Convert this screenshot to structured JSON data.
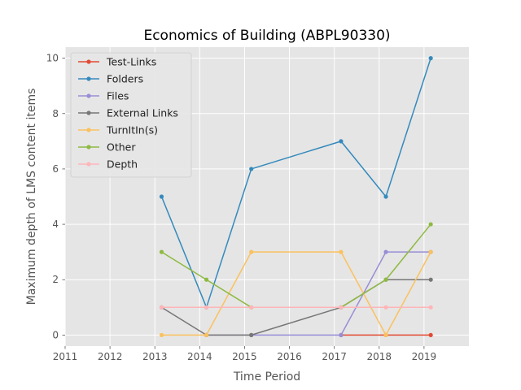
{
  "chart_data": {
    "type": "line",
    "title": "Economics of Building (ABPL90330)",
    "xlabel": "Time Period",
    "ylabel": "Maximum depth of LMS content items",
    "xlim": [
      2011,
      2020
    ],
    "ylim": [
      -0.4,
      10.4
    ],
    "x_ticks": [
      2011,
      2012,
      2013,
      2014,
      2015,
      2016,
      2017,
      2018,
      2019
    ],
    "y_ticks": [
      0,
      2,
      4,
      6,
      8,
      10
    ],
    "grid": true,
    "legend_position": "top-left",
    "series": [
      {
        "name": "Test-Links",
        "color": "#E24A33",
        "x": [
          2017.15,
          2018.15,
          2019.15
        ],
        "y": [
          0,
          0,
          0
        ]
      },
      {
        "name": "Folders",
        "color": "#348ABD",
        "x": [
          2013.15,
          2014.15,
          2015.15,
          2017.15,
          2018.15,
          2019.15
        ],
        "y": [
          5,
          1,
          6,
          7,
          5,
          10
        ]
      },
      {
        "name": "Files",
        "color": "#988ED5",
        "x": [
          2014.15,
          2015.15,
          2017.15,
          2018.15,
          2019.15
        ],
        "y": [
          0,
          0,
          0,
          3,
          3
        ]
      },
      {
        "name": "External Links",
        "color": "#777777",
        "x": [
          2013.15,
          2014.15,
          2015.15,
          2017.15,
          2018.15,
          2019.15
        ],
        "y": [
          1,
          0,
          0,
          1,
          2,
          2
        ]
      },
      {
        "name": "TurnItIn(s)",
        "color": "#FBC15E",
        "x": [
          2013.15,
          2014.15,
          2015.15,
          2017.15,
          2018.15,
          2019.15
        ],
        "y": [
          0,
          0,
          3,
          3,
          0,
          3
        ]
      },
      {
        "name": "Other",
        "color": "#8EBA42",
        "x": [
          2013.15,
          2014.15,
          2015.15,
          2017.15,
          2018.15,
          2019.15
        ],
        "y": [
          3,
          2,
          1,
          1,
          2,
          4
        ]
      },
      {
        "name": "Depth",
        "color": "#FFB5B8",
        "x": [
          2013.15,
          2014.15,
          2015.15,
          2017.15,
          2018.15,
          2019.15
        ],
        "y": [
          1,
          1,
          1,
          1,
          1,
          1
        ]
      }
    ]
  }
}
